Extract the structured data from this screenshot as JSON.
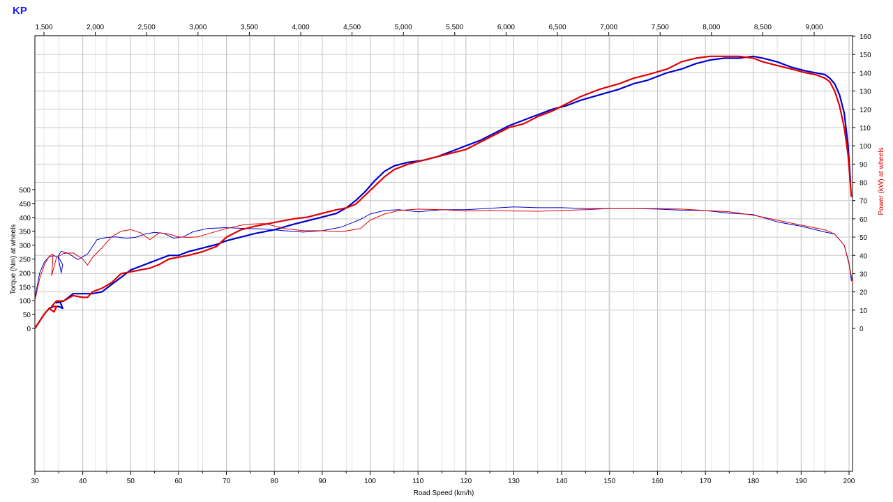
{
  "brand": "KP",
  "chart_data": {
    "type": "line",
    "xlabel": "Road Speed (km/h)",
    "ylabel_left": "Torque (Nm) at wheels",
    "ylabel_right": "Power (kW) at wheels",
    "x_ticks": [
      30,
      40,
      50,
      60,
      70,
      80,
      90,
      100,
      110,
      120,
      130,
      140,
      150,
      160,
      170,
      180,
      190,
      200
    ],
    "xlim": [
      30,
      201
    ],
    "rpm_ticks": [
      "1,500",
      "2,000",
      "2,500",
      "3,000",
      "3,500",
      "4,000",
      "4,500",
      "5,000",
      "5,500",
      "6,000",
      "6,500",
      "7,000",
      "7,500",
      "8,000",
      "8,500",
      "9,000"
    ],
    "torque_ticks": [
      0,
      50,
      100,
      150,
      200,
      250,
      300,
      350,
      400,
      450,
      500
    ],
    "power_ticks": [
      0,
      10,
      20,
      30,
      40,
      50,
      60,
      70,
      80,
      90,
      100,
      110,
      120,
      130,
      140,
      150,
      160
    ],
    "power_ylim": [
      0,
      160
    ],
    "torque_ylim": [
      0,
      500
    ],
    "grid": true,
    "colors": {
      "run1": "#0000cc",
      "run2": "#e00000",
      "grid": "#c8c8c8"
    },
    "series": [
      {
        "color": "#0000cc",
        "quantity": "power_kw",
        "x": [
          30,
          32,
          33,
          34,
          35,
          35.8,
          35.2,
          34.5,
          36,
          38,
          40,
          42,
          44,
          46,
          48,
          50,
          52,
          54,
          56,
          58,
          60,
          62,
          65,
          68,
          70,
          73,
          76,
          80,
          84,
          87,
          90,
          93,
          95,
          97,
          99,
          101,
          103,
          105,
          108,
          111,
          114,
          117,
          120,
          123,
          126,
          129,
          132,
          135,
          138,
          141,
          144,
          148,
          152,
          155,
          158,
          162,
          165,
          168,
          171,
          174,
          177,
          180,
          182,
          185,
          188,
          191,
          193,
          195,
          196,
          197,
          198,
          199,
          199.8,
          200.3
        ],
        "y": [
          0,
          8,
          11,
          12,
          12,
          11,
          15,
          14,
          15,
          19,
          19,
          19,
          20,
          24,
          28,
          32,
          34,
          36,
          38,
          40,
          40,
          42,
          44,
          46,
          48,
          50,
          52,
          54,
          57,
          59,
          61,
          63,
          66,
          70,
          75,
          81,
          86,
          89,
          91,
          92,
          94,
          97,
          100,
          103,
          107,
          111,
          114,
          117,
          120,
          122,
          125,
          128,
          131,
          134,
          136,
          140,
          142,
          145,
          147,
          148,
          148,
          149,
          148,
          146,
          143,
          141,
          140,
          139,
          137,
          134,
          128,
          118,
          100,
          80
        ],
        "torque_x": [
          30,
          31,
          32,
          33,
          34,
          35,
          35.8,
          35.5,
          34.8,
          35.5,
          37,
          39,
          41,
          43,
          45,
          47,
          49,
          51,
          53,
          55,
          57,
          59,
          61,
          63,
          66,
          70,
          74,
          78,
          82,
          86,
          90,
          94,
          98,
          100,
          103,
          106,
          110,
          115,
          120,
          125,
          130,
          135,
          140,
          145,
          150,
          155,
          160,
          165,
          170,
          175,
          180,
          185,
          190,
          195,
          197,
          199,
          200,
          200.5
        ],
        "torque_y": [
          110,
          200,
          240,
          258,
          262,
          255,
          230,
          200,
          260,
          278,
          270,
          248,
          268,
          320,
          328,
          330,
          325,
          328,
          340,
          346,
          342,
          325,
          330,
          348,
          360,
          363,
          360,
          358,
          352,
          347,
          352,
          365,
          393,
          412,
          425,
          428,
          420,
          428,
          428,
          433,
          438,
          435,
          435,
          432,
          432,
          432,
          430,
          426,
          425,
          415,
          410,
          384,
          368,
          347,
          340,
          300,
          235,
          170
        ]
      },
      {
        "color": "#e00000",
        "quantity": "power_kw",
        "x": [
          30,
          32,
          33,
          34,
          34.5,
          33.5,
          34.5,
          36,
          38,
          40,
          41,
          42,
          44,
          46,
          48,
          50,
          52,
          54,
          56,
          58,
          60,
          62,
          65,
          68,
          70,
          73,
          76,
          80,
          84,
          87,
          90,
          93,
          95,
          97,
          99,
          101,
          103,
          105,
          108,
          111,
          114,
          117,
          120,
          123,
          126,
          129,
          132,
          135,
          138,
          141,
          144,
          148,
          152,
          155,
          158,
          162,
          165,
          168,
          171,
          174,
          177,
          180,
          182,
          185,
          188,
          191,
          193,
          195,
          196,
          197,
          198,
          199,
          199.8,
          200.5
        ],
        "y": [
          0,
          8,
          11,
          9,
          12,
          12,
          15,
          15,
          18,
          17,
          17,
          20,
          22,
          25,
          30,
          31,
          32,
          33,
          35,
          38,
          39,
          40,
          42,
          45,
          50,
          54,
          56,
          58,
          60,
          61,
          63,
          65,
          66,
          68,
          73,
          78,
          83,
          87,
          90,
          92,
          94,
          96,
          98,
          102,
          106,
          110,
          112,
          116,
          119,
          123,
          127,
          131,
          134,
          137,
          139,
          142,
          146,
          148,
          149,
          149,
          149,
          148,
          146,
          144,
          142,
          140,
          139,
          137,
          135,
          130,
          122,
          110,
          95,
          72
        ],
        "torque_x": [
          30,
          31,
          32,
          33,
          33.8,
          33.5,
          34.5,
          36,
          38,
          40,
          41,
          42,
          44,
          46,
          48,
          50,
          52,
          54,
          56,
          58,
          60,
          62,
          64,
          66,
          70,
          74,
          78,
          82,
          86,
          90,
          94,
          98,
          100,
          103,
          106,
          110,
          115,
          120,
          125,
          130,
          135,
          140,
          145,
          150,
          155,
          160,
          165,
          170,
          175,
          180,
          185,
          190,
          195,
          197,
          199,
          200,
          200.8
        ],
        "torque_y": [
          100,
          180,
          230,
          260,
          268,
          190,
          255,
          270,
          272,
          250,
          228,
          255,
          290,
          330,
          350,
          356,
          345,
          320,
          345,
          340,
          330,
          328,
          330,
          340,
          360,
          375,
          378,
          360,
          352,
          352,
          348,
          360,
          390,
          412,
          425,
          430,
          428,
          423,
          425,
          423,
          422,
          425,
          428,
          432,
          432,
          432,
          430,
          425,
          420,
          408,
          390,
          372,
          355,
          340,
          300,
          230,
          160
        ]
      }
    ]
  }
}
